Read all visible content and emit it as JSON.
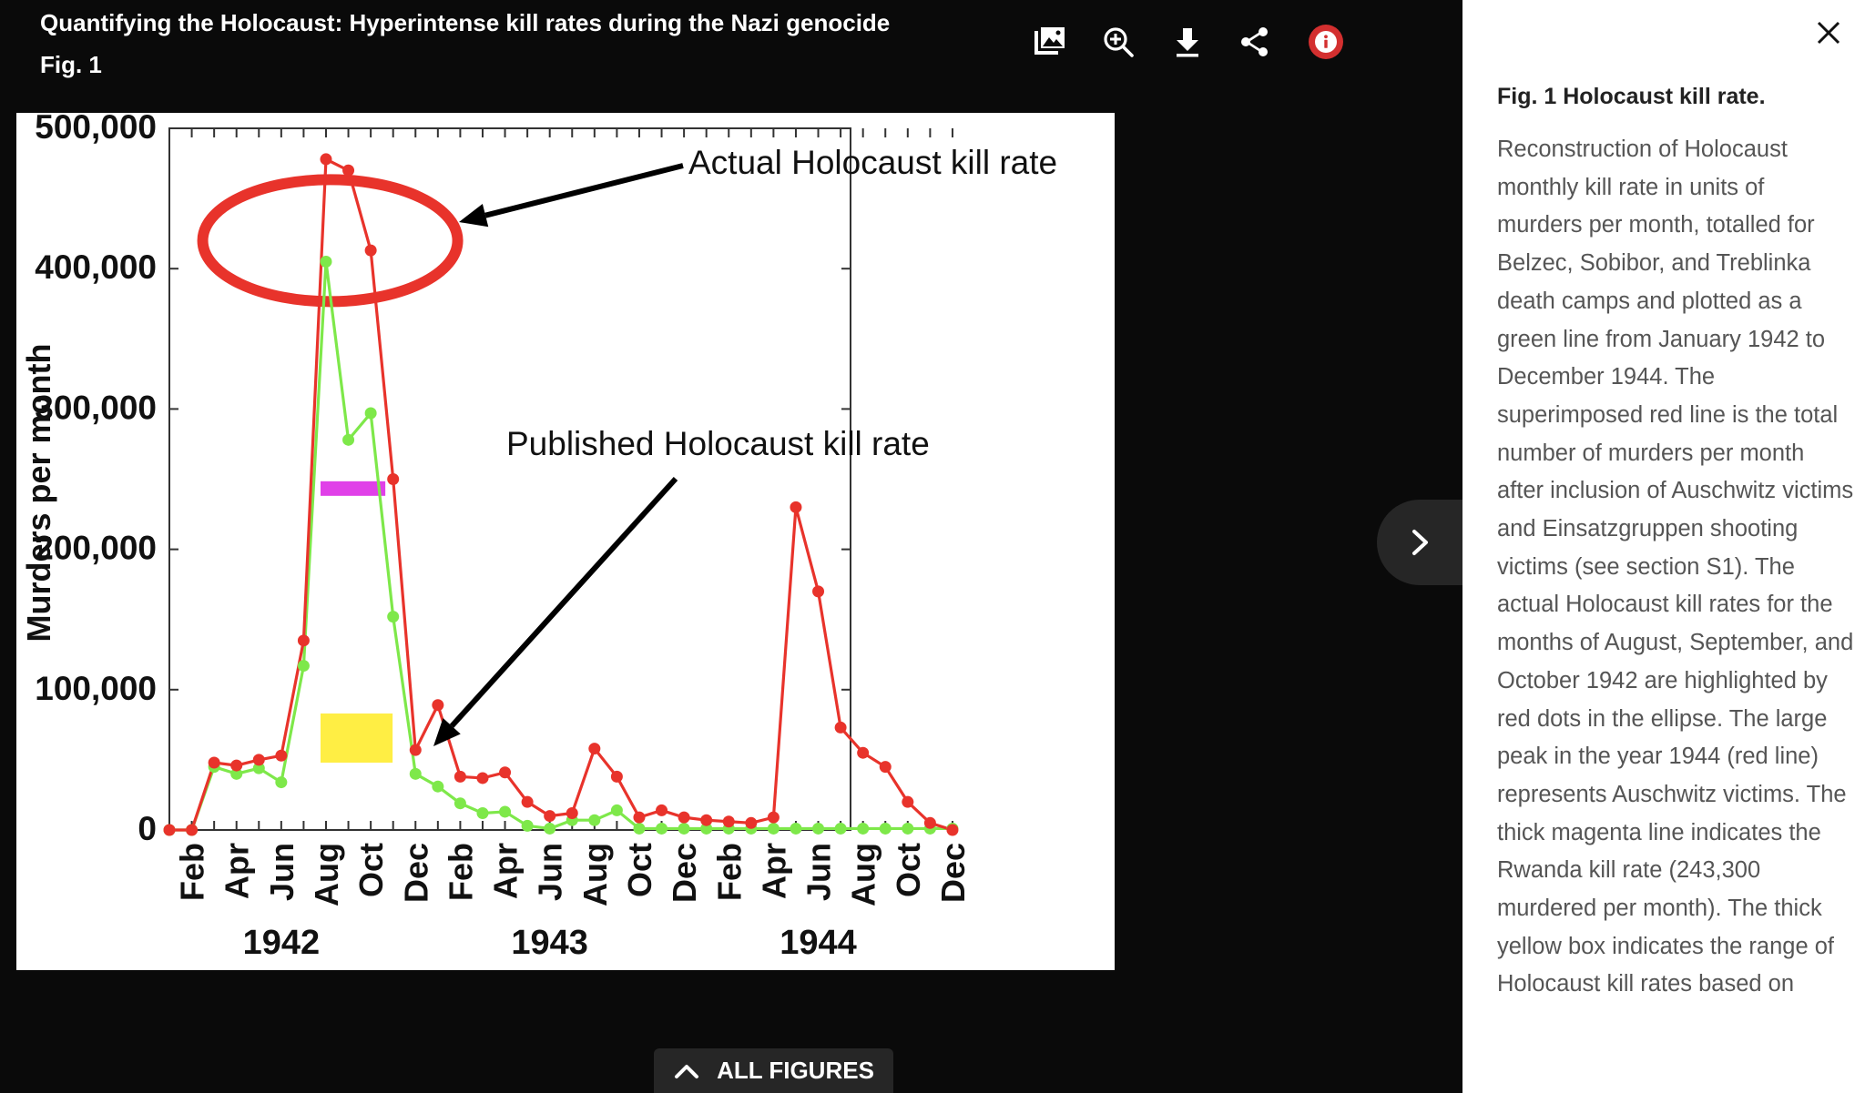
{
  "viewer": {
    "title": "Quantifying the Holocaust: Hyperintense kill rates during the Nazi genocide",
    "figure_label": "Fig. 1",
    "toolbar": [
      {
        "icon": "gallery-icon",
        "label": "Gallery"
      },
      {
        "icon": "zoom-in-icon",
        "label": "Zoom in"
      },
      {
        "icon": "download-icon",
        "label": "Download"
      },
      {
        "icon": "share-icon",
        "label": "Share"
      },
      {
        "icon": "info-icon",
        "label": "Info"
      }
    ],
    "accent_color": "#d32f2f",
    "all_figures_label": "ALL FIGURES"
  },
  "chart_data": {
    "type": "line",
    "title": "",
    "ylabel": "Murders per month",
    "xlabel": "",
    "ylim": [
      0,
      500000
    ],
    "yticks": [
      0,
      100000,
      200000,
      300000,
      400000,
      500000
    ],
    "ytick_labels": [
      "0",
      "100,000",
      "200,000",
      "300,000",
      "400,000",
      "500,000"
    ],
    "x_tick_labels": [
      "Feb",
      "Apr",
      "Jun",
      "Aug",
      "Oct",
      "Dec",
      "Feb",
      "Apr",
      "Jun",
      "Aug",
      "Oct",
      "Dec",
      "Feb",
      "Apr",
      "Jun",
      "Aug",
      "Oct",
      "Dec"
    ],
    "year_labels": [
      "1942",
      "1943",
      "1944"
    ],
    "months": [
      "Jan 1942",
      "Feb 1942",
      "Mar 1942",
      "Apr 1942",
      "May 1942",
      "Jun 1942",
      "Jul 1942",
      "Aug 1942",
      "Sep 1942",
      "Oct 1942",
      "Nov 1942",
      "Dec 1942",
      "Jan 1943",
      "Feb 1943",
      "Mar 1943",
      "Apr 1943",
      "May 1943",
      "Jun 1943",
      "Jul 1943",
      "Aug 1943",
      "Sep 1943",
      "Oct 1943",
      "Nov 1943",
      "Dec 1943",
      "Jan 1944",
      "Feb 1944",
      "Mar 1944",
      "Apr 1944",
      "May 1944",
      "Jun 1944",
      "Jul 1944",
      "Aug 1944",
      "Sep 1944",
      "Oct 1944",
      "Nov 1944",
      "Dec 1944"
    ],
    "series": [
      {
        "color": "#e8332b",
        "values": [
          0,
          0,
          48000,
          46000,
          50000,
          53000,
          135000,
          478000,
          470000,
          413000,
          250000,
          57000,
          89000,
          38000,
          37000,
          41000,
          20000,
          10000,
          12000,
          58000,
          38000,
          9000,
          14000,
          9000,
          7000,
          6000,
          5000,
          9000,
          230000,
          170000,
          73000,
          55000,
          45000,
          20000,
          5000,
          0
        ]
      },
      {
        "color": "#7ee84a",
        "values": [
          0,
          0,
          45000,
          40000,
          44000,
          34000,
          117000,
          405000,
          278000,
          297000,
          152000,
          40000,
          31000,
          19000,
          12000,
          13000,
          3000,
          1000,
          7000,
          7000,
          14000,
          1000,
          1000,
          1000,
          1000,
          1000,
          1000,
          1000,
          1000,
          1000,
          1000,
          1000,
          1000,
          1000,
          1000,
          1000
        ]
      }
    ],
    "annotations": [
      {
        "text": "Actual Holocaust kill rate"
      },
      {
        "text": "Published Holocaust kill rate"
      }
    ],
    "highlights": {
      "rwanda_line": {
        "color": "#e040e8",
        "value": 243300,
        "x_range": [
          "Aug 1942",
          "Oct 1942"
        ]
      },
      "published_range_box": {
        "color": "#ffee44",
        "y_range": [
          48000,
          83000
        ],
        "x_range": [
          "Aug 1942",
          "Oct 1942"
        ]
      },
      "ellipse_color": "#e8332b"
    }
  },
  "caption": {
    "title": "Fig. 1 Holocaust kill rate.",
    "body": "Reconstruction of Holocaust monthly kill rate in units of murders per month, totalled for Belzec, Sobibor, and Treblinka death camps and plotted as a green line from January 1942 to December 1944. The superimposed red line is the total number of murders per month after inclusion of Auschwitz victims and Einsatzgruppen shooting victims (see section S1). The actual Holocaust kill rates for the months of August, September, and October 1942 are highlighted by red dots in the ellipse. The large peak in the year 1944 (red line) represents Auschwitz victims. The thick magenta line indicates the Rwanda kill rate (243,300 murdered per month). The thick yellow box indicates the range of Holocaust kill rates based on"
  }
}
